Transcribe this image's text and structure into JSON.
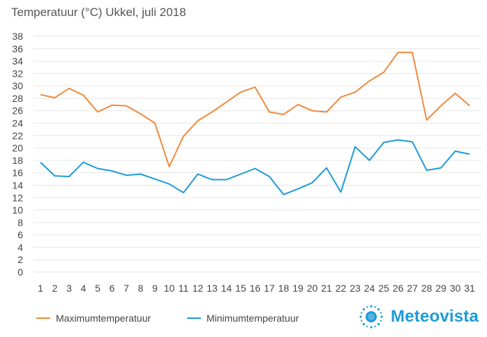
{
  "header": {
    "title": "Temperatuur (°C)  Ukkel, juli 2018"
  },
  "colors": {
    "max": "#f08a3c",
    "min": "#1d9bd8",
    "grid": "#e6e6e6",
    "brand": "#1d9bd8"
  },
  "brand": {
    "name": "Meteovista",
    "icon": "sun-logo-icon"
  },
  "chart_data": {
    "type": "line",
    "title": "Temperatuur (°C)  Ukkel, juli 2018",
    "xlabel": "",
    "ylabel": "",
    "x": [
      1,
      2,
      3,
      4,
      5,
      6,
      7,
      8,
      9,
      10,
      11,
      12,
      13,
      14,
      15,
      16,
      17,
      18,
      19,
      20,
      21,
      22,
      23,
      24,
      25,
      26,
      27,
      28,
      29,
      30,
      31
    ],
    "ylim": [
      0,
      38
    ],
    "yticks": [
      0,
      2,
      4,
      6,
      8,
      10,
      12,
      14,
      16,
      18,
      20,
      22,
      24,
      26,
      28,
      30,
      32,
      34,
      36,
      38
    ],
    "grid": true,
    "legend_position": "bottom-left",
    "series": [
      {
        "name": "Maximumtemperatuur",
        "values": [
          28.6,
          28.1,
          29.6,
          28.5,
          25.8,
          26.9,
          26.8,
          25.5,
          24.0,
          17.0,
          21.9,
          24.4,
          25.8,
          27.4,
          29.0,
          29.8,
          25.8,
          25.4,
          27.0,
          26.0,
          25.8,
          28.2,
          29.0,
          30.8,
          32.2,
          35.4,
          35.4,
          24.5,
          26.8,
          28.8,
          26.8
        ]
      },
      {
        "name": "Minimumtemperatuur",
        "values": [
          17.7,
          15.5,
          15.4,
          17.7,
          16.7,
          16.3,
          15.6,
          15.8,
          15.0,
          14.2,
          12.8,
          15.8,
          14.9,
          14.9,
          15.8,
          16.7,
          15.4,
          12.5,
          13.4,
          14.4,
          16.8,
          12.9,
          20.2,
          18.0,
          20.9,
          21.3,
          21.0,
          16.4,
          16.8,
          19.5,
          19.0
        ]
      }
    ]
  }
}
